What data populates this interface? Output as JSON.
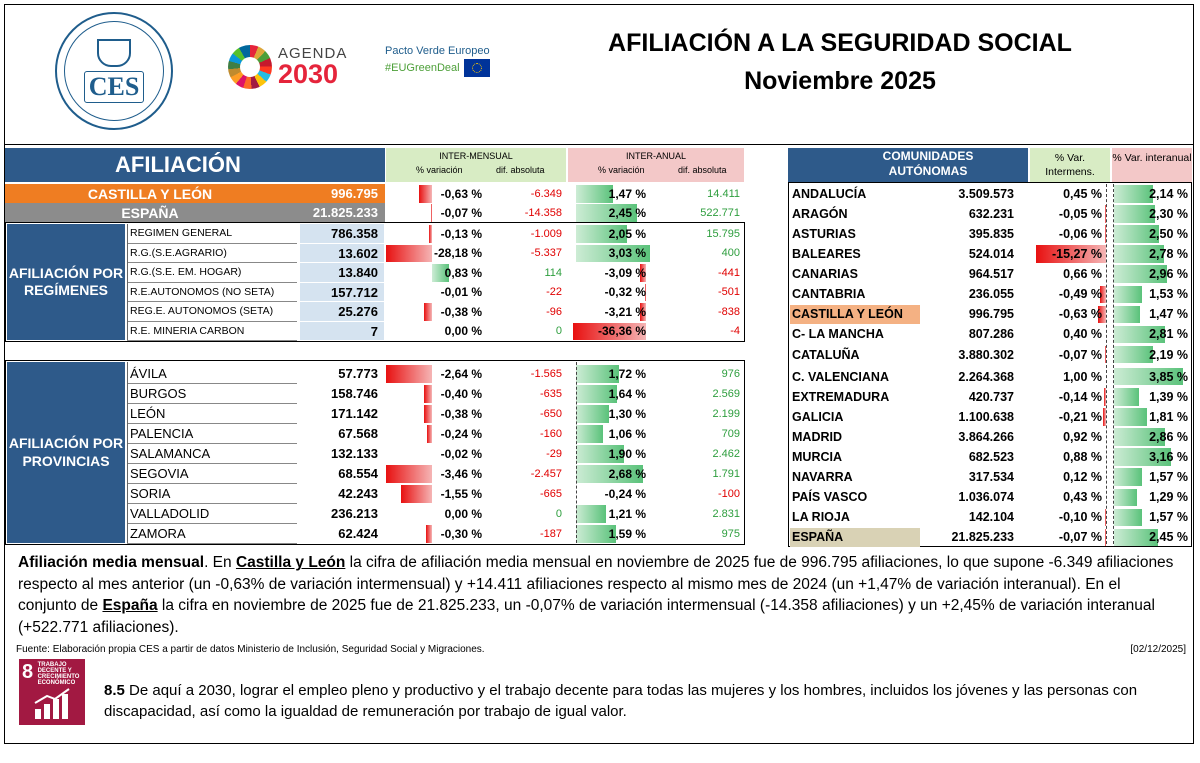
{
  "header": {
    "title_line1": "AFILIACIÓN A LA SEGURIDAD SOCIAL",
    "title_line2": "Noviembre 2025",
    "ces_logo": "CES",
    "agenda_line1": "AGENDA",
    "agenda_line2": "2030",
    "pacto_line1": "Pacto Verde Europeo",
    "pacto_line2": "#EUGreenDeal"
  },
  "left": {
    "title": "AFILIACIÓN",
    "intermensual_header": "INTER-MENSUAL",
    "interanual_header": "INTER-ANUAL",
    "pct_var": "% variación",
    "dif_abs": "dif. absoluta",
    "top_rows": [
      {
        "name": "CASTILLA Y LEÓN",
        "value": "996.795",
        "m_pct": "-0,63 %",
        "m_pct_num": -0.63,
        "m_abs": "-6.349",
        "a_pct": "1,47 %",
        "a_pct_num": 1.47,
        "a_abs": "14.411"
      },
      {
        "name": "ESPAÑA",
        "value": "21.825.233",
        "m_pct": "-0,07 %",
        "m_pct_num": -0.07,
        "m_abs": "-14.358",
        "a_pct": "2,45 %",
        "a_pct_num": 2.45,
        "a_abs": "522.771"
      }
    ],
    "regimes_label": "AFILIACIÓN POR REGÍMENES",
    "regimes": [
      {
        "name": "REGIMEN GENERAL",
        "value": "786.358",
        "m_pct": "-0,13 %",
        "m_pct_num": -0.13,
        "m_abs": "-1.009",
        "a_pct": "2,05 %",
        "a_pct_num": 2.05,
        "a_abs": "15.795"
      },
      {
        "name": "R.G.(S.E.AGRARIO)",
        "value": "13.602",
        "m_pct": "-28,18 %",
        "m_pct_num": -28.18,
        "m_abs": "-5.337",
        "a_pct": "3,03 %",
        "a_pct_num": 3.03,
        "a_abs": "400"
      },
      {
        "name": "R.G.(S.E. EM. HOGAR)",
        "value": "13.840",
        "m_pct": "0,83 %",
        "m_pct_num": 0.83,
        "m_abs": "114",
        "a_pct": "-3,09 %",
        "a_pct_num": -3.09,
        "a_abs": "-441"
      },
      {
        "name": "R.E.AUTONOMOS (NO SETA)",
        "value": "157.712",
        "m_pct": "-0,01 %",
        "m_pct_num": -0.01,
        "m_abs": "-22",
        "a_pct": "-0,32 %",
        "a_pct_num": -0.32,
        "a_abs": "-501"
      },
      {
        "name": "REG.E. AUTONOMOS (SETA)",
        "value": "25.276",
        "m_pct": "-0,38 %",
        "m_pct_num": -0.38,
        "m_abs": "-96",
        "a_pct": "-3,21 %",
        "a_pct_num": -3.21,
        "a_abs": "-838"
      },
      {
        "name": "R.E. MINERIA CARBON",
        "value": "7",
        "m_pct": "0,00 %",
        "m_pct_num": 0,
        "m_abs": "0",
        "a_pct": "-36,36 %",
        "a_pct_num": -36.36,
        "a_abs": "-4"
      }
    ],
    "provinces_label": "AFILIACIÓN POR PROVINCIAS",
    "provinces": [
      {
        "name": "ÁVILA",
        "value": "57.773",
        "m_pct": "-2,64 %",
        "m_pct_num": -2.64,
        "m_abs": "-1.565",
        "a_pct": "1,72 %",
        "a_pct_num": 1.72,
        "a_abs": "976"
      },
      {
        "name": "BURGOS",
        "value": "158.746",
        "m_pct": "-0,40 %",
        "m_pct_num": -0.4,
        "m_abs": "-635",
        "a_pct": "1,64 %",
        "a_pct_num": 1.64,
        "a_abs": "2.569"
      },
      {
        "name": "LEÓN",
        "value": "171.142",
        "m_pct": "-0,38 %",
        "m_pct_num": -0.38,
        "m_abs": "-650",
        "a_pct": "1,30 %",
        "a_pct_num": 1.3,
        "a_abs": "2.199"
      },
      {
        "name": "PALENCIA",
        "value": "67.568",
        "m_pct": "-0,24 %",
        "m_pct_num": -0.24,
        "m_abs": "-160",
        "a_pct": "1,06 %",
        "a_pct_num": 1.06,
        "a_abs": "709"
      },
      {
        "name": "SALAMANCA",
        "value": "132.133",
        "m_pct": "-0,02 %",
        "m_pct_num": -0.02,
        "m_abs": "-29",
        "a_pct": "1,90 %",
        "a_pct_num": 1.9,
        "a_abs": "2.462"
      },
      {
        "name": "SEGOVIA",
        "value": "68.554",
        "m_pct": "-3,46 %",
        "m_pct_num": -3.46,
        "m_abs": "-2.457",
        "a_pct": "2,68 %",
        "a_pct_num": 2.68,
        "a_abs": "1.791"
      },
      {
        "name": "SORIA",
        "value": "42.243",
        "m_pct": "-1,55 %",
        "m_pct_num": -1.55,
        "m_abs": "-665",
        "a_pct": "-0,24 %",
        "a_pct_num": -0.24,
        "a_abs": "-100"
      },
      {
        "name": "VALLADOLID",
        "value": "236.213",
        "m_pct": "0,00 %",
        "m_pct_num": 0,
        "m_abs": "0",
        "a_pct": "1,21 %",
        "a_pct_num": 1.21,
        "a_abs": "2.831"
      },
      {
        "name": "ZAMORA",
        "value": "62.424",
        "m_pct": "-0,30 %",
        "m_pct_num": -0.3,
        "m_abs": "-187",
        "a_pct": "1,59 %",
        "a_pct_num": 1.59,
        "a_abs": "975"
      }
    ]
  },
  "right": {
    "header_ca": "COMUNIDADES AUTÓNOMAS",
    "header_m": "% Var. Intermens.",
    "header_a": "% Var. interanual",
    "rows": [
      {
        "name": "ANDALUCÍA",
        "value": "3.509.573",
        "m": "0,45 %",
        "m_num": 0.45,
        "a": "2,14 %",
        "a_num": 2.14
      },
      {
        "name": "ARAGÓN",
        "value": "632.231",
        "m": "-0,05 %",
        "m_num": -0.05,
        "a": "2,30 %",
        "a_num": 2.3
      },
      {
        "name": "ASTURIAS",
        "value": "395.835",
        "m": "-0,06 %",
        "m_num": -0.06,
        "a": "2,50 %",
        "a_num": 2.5
      },
      {
        "name": "BALEARES",
        "value": "524.014",
        "m": "-15,27 %",
        "m_num": -15.27,
        "a": "2,78 %",
        "a_num": 2.78
      },
      {
        "name": "CANARIAS",
        "value": "964.517",
        "m": "0,66 %",
        "m_num": 0.66,
        "a": "2,96 %",
        "a_num": 2.96
      },
      {
        "name": "CANTABRIA",
        "value": "236.055",
        "m": "-0,49 %",
        "m_num": -0.49,
        "a": "1,53 %",
        "a_num": 1.53
      },
      {
        "name": "CASTILLA Y LEÓN",
        "value": "996.795",
        "m": "-0,63 %",
        "m_num": -0.63,
        "a": "1,47 %",
        "a_num": 1.47
      },
      {
        "name": "C- LA MANCHA",
        "value": "807.286",
        "m": "0,40 %",
        "m_num": 0.4,
        "a": "2,81 %",
        "a_num": 2.81
      },
      {
        "name": "CATALUÑA",
        "value": "3.880.302",
        "m": "-0,07 %",
        "m_num": -0.07,
        "a": "2,19 %",
        "a_num": 2.19
      },
      {
        "name": "C. VALENCIANA",
        "value": "2.264.368",
        "m": "1,00 %",
        "m_num": 1.0,
        "a": "3,85 %",
        "a_num": 3.85
      },
      {
        "name": "EXTREMADURA",
        "value": "420.737",
        "m": "-0,14 %",
        "m_num": -0.14,
        "a": "1,39 %",
        "a_num": 1.39
      },
      {
        "name": "GALICIA",
        "value": "1.100.638",
        "m": "-0,21 %",
        "m_num": -0.21,
        "a": "1,81 %",
        "a_num": 1.81
      },
      {
        "name": "MADRID",
        "value": "3.864.266",
        "m": "0,92 %",
        "m_num": 0.92,
        "a": "2,86 %",
        "a_num": 2.86
      },
      {
        "name": "MURCIA",
        "value": "682.523",
        "m": "0,88 %",
        "m_num": 0.88,
        "a": "3,16 %",
        "a_num": 3.16
      },
      {
        "name": "NAVARRA",
        "value": "317.534",
        "m": "0,12 %",
        "m_num": 0.12,
        "a": "1,57 %",
        "a_num": 1.57
      },
      {
        "name": "PAÍS VASCO",
        "value": "1.036.074",
        "m": "0,43 %",
        "m_num": 0.43,
        "a": "1,29 %",
        "a_num": 1.29
      },
      {
        "name": "LA RIOJA",
        "value": "142.104",
        "m": "-0,10 %",
        "m_num": -0.1,
        "a": "1,57 %",
        "a_num": 1.57
      },
      {
        "name": "ESPAÑA",
        "value": "21.825.233",
        "m": "-0,07 %",
        "m_num": -0.07,
        "a": "2,45 %",
        "a_num": 2.45
      }
    ]
  },
  "note": {
    "p1": "Afiliación media mensual",
    "p2": ". En ",
    "p3": "Castilla y León",
    "p4": " la cifra de afiliación media mensual en noviembre de 2025 fue de 996.795 afiliaciones, lo que supone -6.349 afiliaciones respecto al mes anterior (un -0,63% de variación intermensual) y +14.411 afiliaciones respecto al mismo mes de 2024 (un +1,47% de variación interanual). En el conjunto de ",
    "p5": "España",
    "p6": " la cifra en noviembre de 2025 fue de 21.825.233, un -0,07% de variación intermensual (-14.358 afiliaciones) y un +2,45% de variación interanual (+522.771 afiliaciones)."
  },
  "source": "Fuente: Elaboración propia CES a partir de datos Ministerio de Inclusión, Seguridad Social y Migraciones.",
  "date": "[02/12/2025]",
  "sdg": {
    "number": "8",
    "title": "TRABAJO DECENTE Y CRECIMIENTO ECONÓMICO",
    "target": "8.5",
    "text": " De aquí a 2030, lograr el empleo pleno y productivo y el trabajo decente para todas las mujeres y los hombres, incluidos los jóvenes y las personas con discapacidad, así como la igualdad de remuneración por trabajo de igual valor."
  }
}
